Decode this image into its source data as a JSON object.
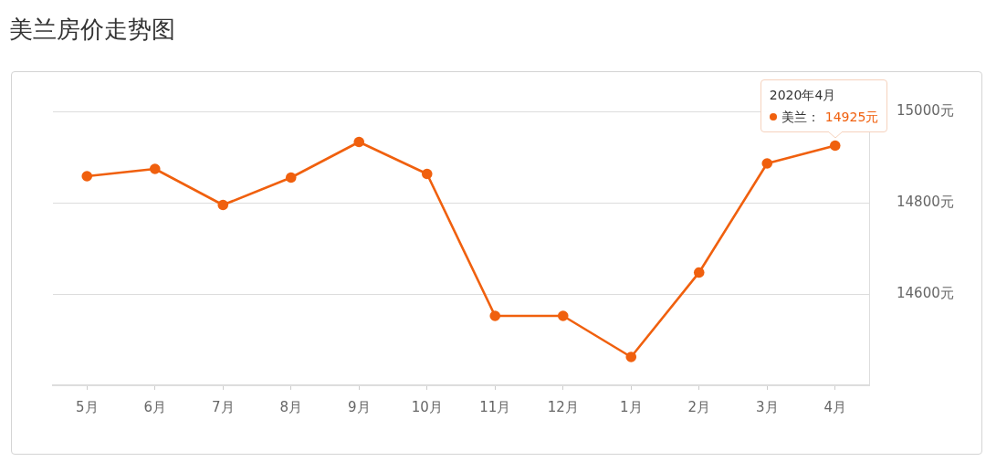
{
  "chart_data": {
    "type": "line",
    "title": "美兰房价走势图",
    "categories": [
      "5月",
      "6月",
      "7月",
      "8月",
      "9月",
      "10月",
      "11月",
      "12月",
      "1月",
      "2月",
      "3月",
      "4月"
    ],
    "series": [
      {
        "name": "美兰：",
        "color": "#f0600e",
        "values": [
          14858,
          14874,
          14795,
          14855,
          14933,
          14863,
          14552,
          14552,
          14462,
          14647,
          14886,
          14925
        ],
        "value_labels": [
          null,
          null,
          null,
          null,
          null,
          null,
          null,
          null,
          null,
          null,
          null,
          "14925元"
        ]
      }
    ],
    "ylim": [
      14400,
      15000
    ],
    "yticks": [
      {
        "value": 14600,
        "label": "14600元"
      },
      {
        "value": 14800,
        "label": "14800元"
      },
      {
        "value": 15000,
        "label": "15000元"
      }
    ],
    "grid": "y",
    "marker": "circle",
    "annotations": [
      "2020年4月"
    ]
  }
}
